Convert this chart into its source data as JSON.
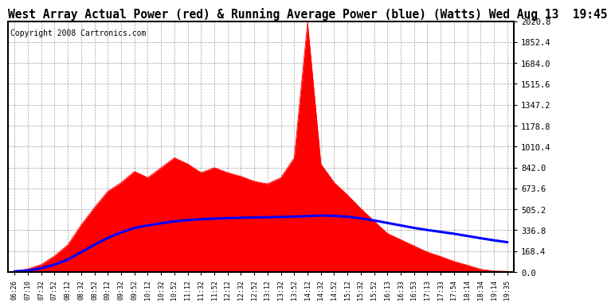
{
  "title": "West Array Actual Power (red) & Running Average Power (blue) (Watts) Wed Aug 13  19:45",
  "copyright": "Copyright 2008 Cartronics.com",
  "yticks": [
    0.0,
    168.4,
    336.8,
    505.2,
    673.6,
    842.0,
    1010.4,
    1178.8,
    1347.2,
    1515.6,
    1684.0,
    1852.4,
    2020.8
  ],
  "ymin": 0.0,
  "ymax": 2020.8,
  "bg_color": "#ffffff",
  "plot_bg_color": "#ffffff",
  "grid_color": "#888888",
  "bar_color": "#ff0000",
  "line_color": "#0000ff",
  "title_fontsize": 10.5,
  "copyright_fontsize": 7,
  "time_labels": [
    "06:26",
    "07:10",
    "07:32",
    "07:52",
    "08:12",
    "08:32",
    "08:52",
    "09:12",
    "09:32",
    "09:52",
    "10:12",
    "10:32",
    "10:52",
    "11:12",
    "11:32",
    "11:52",
    "12:12",
    "12:32",
    "12:52",
    "13:12",
    "13:32",
    "13:52",
    "14:12",
    "14:32",
    "14:52",
    "15:12",
    "15:32",
    "15:52",
    "16:13",
    "16:33",
    "16:53",
    "17:13",
    "17:33",
    "17:54",
    "18:14",
    "18:34",
    "19:14",
    "19:35"
  ],
  "power_actual": [
    5,
    25,
    60,
    130,
    220,
    380,
    520,
    650,
    720,
    810,
    760,
    840,
    920,
    870,
    800,
    840,
    800,
    770,
    730,
    710,
    760,
    920,
    2010,
    870,
    720,
    620,
    510,
    410,
    310,
    260,
    210,
    160,
    125,
    85,
    55,
    22,
    8,
    5
  ],
  "avg_power": [
    5,
    12,
    30,
    60,
    100,
    160,
    220,
    275,
    320,
    355,
    375,
    392,
    408,
    418,
    425,
    430,
    434,
    437,
    439,
    441,
    443,
    446,
    450,
    455,
    452,
    445,
    432,
    415,
    395,
    375,
    355,
    338,
    323,
    308,
    290,
    272,
    255,
    240
  ]
}
